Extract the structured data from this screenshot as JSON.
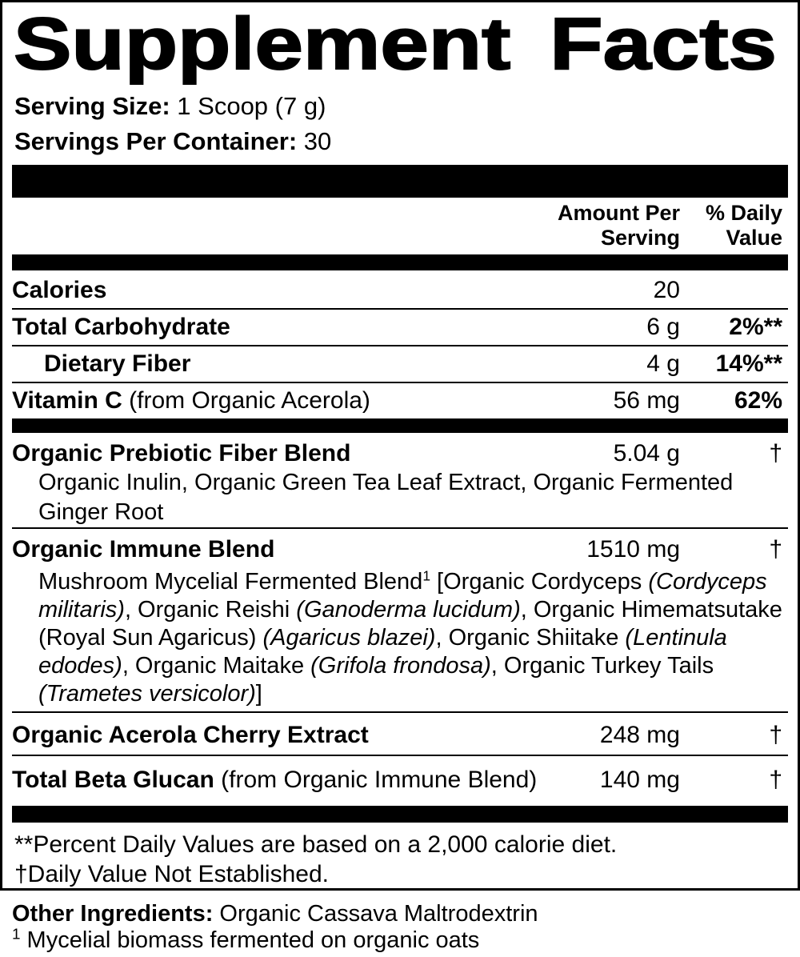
{
  "title": "Supplement Facts",
  "serving_info": {
    "serving_size_label": "Serving Size:",
    "serving_size_value": " 1 Scoop (7 g)",
    "servings_per_container_label": "Servings Per Container:",
    "servings_per_container_value": " 30"
  },
  "table_header": {
    "amount_line1": "Amount Per",
    "amount_line2": "Serving",
    "dv_line1": "% Daily",
    "dv_line2": "Value"
  },
  "rows": {
    "calories": {
      "name": "Calories",
      "amount": "20",
      "daily_value": ""
    },
    "total_carbohydrate": {
      "name": "Total Carbohydrate",
      "amount": "6 g",
      "daily_value": "2%**"
    },
    "dietary_fiber": {
      "name": "Dietary Fiber",
      "amount": "4 g",
      "daily_value": "14%**"
    },
    "vitamin_c": {
      "name_bold": "Vitamin C",
      "name_rest": " (from Organic Acerola)",
      "amount": "56 mg",
      "daily_value": "62%"
    },
    "prebiotic_blend": {
      "name": "Organic Prebiotic Fiber Blend",
      "amount": "5.04 g",
      "daily_value": "†",
      "ingredients": "Organic Inulin, Organic Green Tea Leaf Extract, Organic Fermented Ginger Root"
    },
    "immune_blend": {
      "name": "Organic Immune Blend",
      "amount": "1510 mg",
      "daily_value": "†",
      "description_segments": [
        {
          "t": "Mushroom Mycelial Fermented Blend"
        },
        {
          "t": "1",
          "s": true
        },
        {
          "t": " [Organic Cordyceps "
        },
        {
          "t": "(Cordyceps militaris)",
          "i": true
        },
        {
          "t": ", Organic Reishi "
        },
        {
          "t": "(Ganoderma lucidum)",
          "i": true
        },
        {
          "t": ", Organic Himematsutake (Royal Sun Agaricus) "
        },
        {
          "t": "(Agaricus blazei)",
          "i": true
        },
        {
          "t": ", Organic Shiitake "
        },
        {
          "t": "(Lentinula edodes)",
          "i": true
        },
        {
          "t": ", Organic Maitake "
        },
        {
          "t": "(Grifola frondosa)",
          "i": true
        },
        {
          "t": ", Organic Turkey Tails "
        },
        {
          "t": "(Trametes versicolor)",
          "i": true
        },
        {
          "t": "]"
        }
      ]
    },
    "acerola_cherry": {
      "name": "Organic Acerola Cherry Extract",
      "amount": "248 mg",
      "daily_value": "†"
    },
    "beta_glucan": {
      "name_bold": "Total Beta Glucan",
      "name_rest": " (from Organic Immune Blend)",
      "amount": "140 mg",
      "daily_value": "†"
    }
  },
  "footnotes": {
    "percent_daily_note": "**Percent Daily Values are based on a 2,000 calorie diet.",
    "dagger_note": "†Daily Value Not Established."
  },
  "other_ingredients": {
    "label": "Other Ingredients:",
    "value": " Organic Cassava Maltrodextrin",
    "footnote_marker": "1",
    "footnote_text": " Mycelial biomass fermented on organic oats"
  },
  "colors": {
    "text": "#000000",
    "background": "#ffffff"
  }
}
